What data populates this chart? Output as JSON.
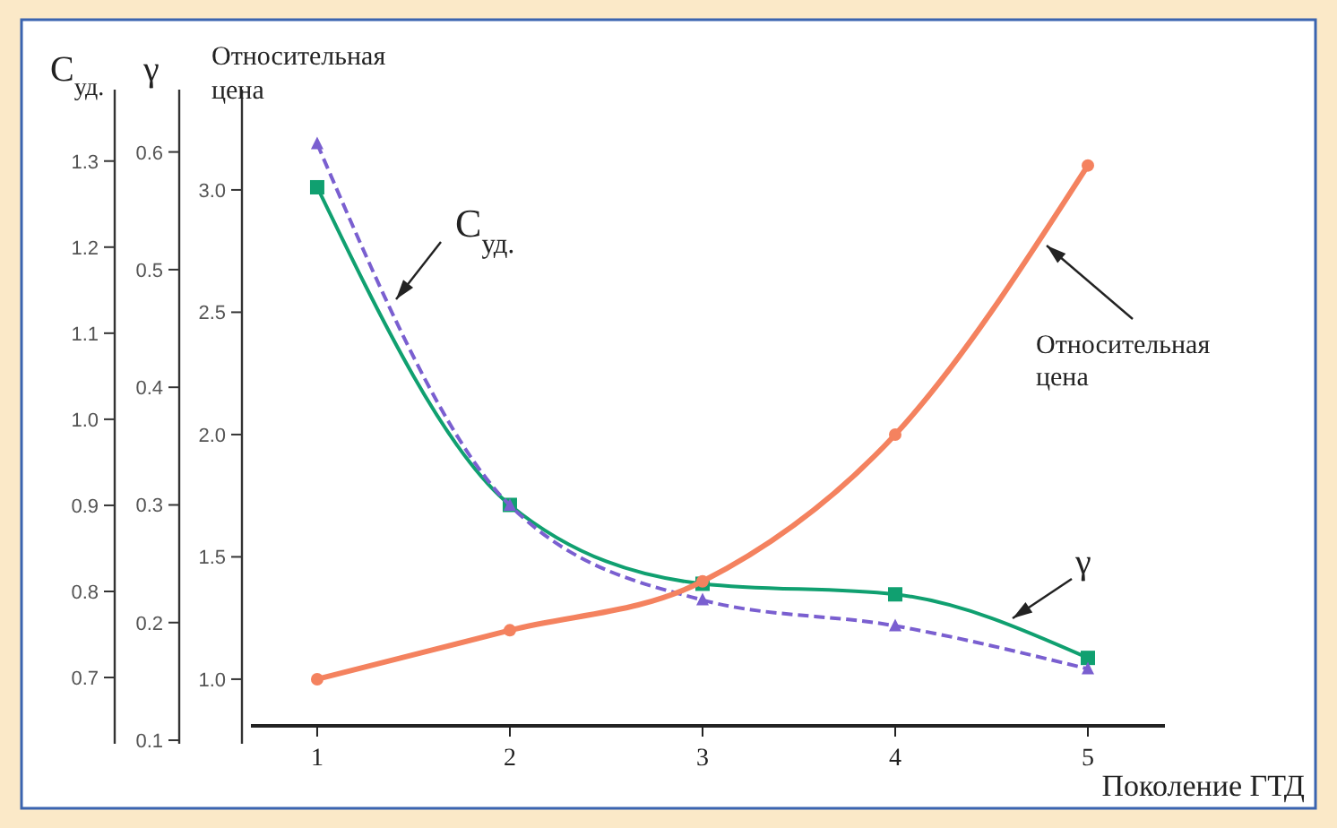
{
  "chart_data": {
    "type": "line",
    "xlabel": "Поколение ГТД",
    "ylabel": "Относительная цена",
    "y2label": "С$_{уд.}$",
    "y3label": "γ",
    "x": [
      1,
      2,
      3,
      4,
      5
    ],
    "xlim": [
      0.656,
      5.4
    ],
    "xticks": [
      1,
      2,
      3,
      4,
      5
    ],
    "ylim": [
      0.736,
      3.41
    ],
    "yticks": [
      {
        "value": 1,
        "label": "1.0"
      },
      1.5,
      {
        "value": 2,
        "label": "2.0"
      },
      2.5,
      {
        "value": 3,
        "label": "3.0"
      }
    ],
    "y2lim": [
      0.623,
      1.383
    ],
    "y2ticks": [
      0.7,
      0.8,
      0.9,
      {
        "value": 1,
        "label": "1.0"
      },
      1.1,
      1.2,
      1.3
    ],
    "y3lim": [
      0.097,
      0.653
    ],
    "y3ticks": [
      0.1,
      0.2,
      0.3,
      0.4,
      0.5,
      0.6
    ],
    "grid": false,
    "series": [
      {
        "name": "Относительная цена",
        "color": "#f4825f",
        "values": [
          1.0,
          1.2,
          1.4,
          2.0,
          3.1
        ],
        "marker": "circle",
        "line_style": "solid"
      },
      {
        "name": "С$_{уд.}$",
        "axis": "y2",
        "color": "#7a5fd0",
        "values": [
          1.32,
          0.9,
          0.79,
          0.76,
          0.71
        ],
        "marker": "triangle",
        "line_style": "dashed"
      },
      {
        "name": "γ",
        "axis": "y3",
        "color": "#10a070",
        "values": [
          0.57,
          0.3,
          0.233,
          0.224,
          0.17
        ],
        "marker": "square",
        "line_style": "solid"
      }
    ]
  }
}
